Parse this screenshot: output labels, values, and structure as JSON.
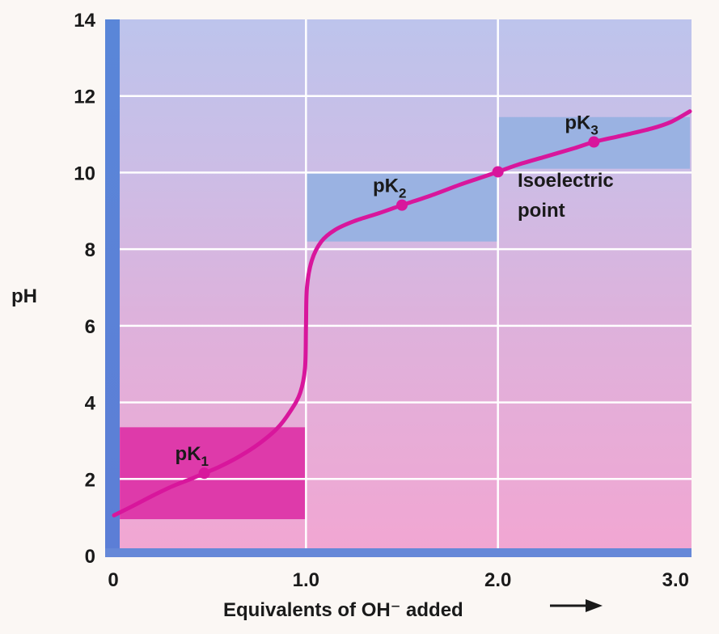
{
  "chart_data": {
    "type": "line",
    "title": "",
    "xlabel": "Equivalents of OH⁻ added",
    "ylabel": "pH",
    "xlim": [
      0,
      3.0
    ],
    "ylim": [
      0,
      14
    ],
    "x_ticks": [
      {
        "value": 0,
        "label": "0"
      },
      {
        "value": 1.0,
        "label": "1.0"
      },
      {
        "value": 2.0,
        "label": "2.0"
      },
      {
        "value": 3.0,
        "label": "3.0"
      }
    ],
    "y_ticks": [
      {
        "value": 0,
        "label": "0"
      },
      {
        "value": 2,
        "label": "2"
      },
      {
        "value": 4,
        "label": "4"
      },
      {
        "value": 6,
        "label": "6"
      },
      {
        "value": 8,
        "label": "8"
      },
      {
        "value": 10,
        "label": "10"
      },
      {
        "value": 12,
        "label": "12"
      },
      {
        "value": 14,
        "label": "14"
      }
    ],
    "grid": true,
    "series": [
      {
        "color": "#d8169c",
        "points": [
          [
            0,
            1.05
          ],
          [
            0.1,
            1.3
          ],
          [
            0.2,
            1.56
          ],
          [
            0.3,
            1.8
          ],
          [
            0.4,
            2.0
          ],
          [
            0.47,
            2.15
          ],
          [
            0.55,
            2.32
          ],
          [
            0.65,
            2.58
          ],
          [
            0.75,
            2.9
          ],
          [
            0.85,
            3.32
          ],
          [
            0.92,
            3.78
          ],
          [
            0.97,
            4.25
          ],
          [
            0.995,
            4.9
          ],
          [
            1.0,
            6.0
          ],
          [
            1.005,
            7.0
          ],
          [
            1.03,
            7.7
          ],
          [
            1.08,
            8.2
          ],
          [
            1.15,
            8.5
          ],
          [
            1.25,
            8.73
          ],
          [
            1.38,
            8.94
          ],
          [
            1.5,
            9.15
          ],
          [
            1.65,
            9.4
          ],
          [
            1.8,
            9.68
          ],
          [
            1.9,
            9.85
          ],
          [
            2.0,
            10.02
          ],
          [
            2.1,
            10.2
          ],
          [
            2.25,
            10.42
          ],
          [
            2.4,
            10.64
          ],
          [
            2.5,
            10.8
          ],
          [
            2.65,
            10.97
          ],
          [
            2.8,
            11.15
          ],
          [
            2.9,
            11.32
          ],
          [
            3.0,
            11.6
          ]
        ]
      }
    ],
    "highlight_regions": [
      {
        "x": [
          0.03,
          1.0
        ],
        "y": [
          0.95,
          3.35
        ],
        "color": "#de3aaa"
      },
      {
        "x": [
          1.0,
          2.0
        ],
        "y": [
          8.2,
          10.0
        ],
        "color": "#9ab2e2"
      },
      {
        "x": [
          2.0,
          3.0
        ],
        "y": [
          10.1,
          11.45
        ],
        "color": "#9ab2e2"
      }
    ],
    "marked_points": [
      {
        "x": 0.47,
        "y": 2.15,
        "label": "pK",
        "sub": "1"
      },
      {
        "x": 1.5,
        "y": 9.15,
        "label": "pK",
        "sub": "2"
      },
      {
        "x": 2.5,
        "y": 10.8,
        "label": "pK",
        "sub": "3"
      },
      {
        "x": 2.0,
        "y": 10.02
      }
    ],
    "annotation": {
      "line1": "Isoelectric",
      "line2": "point"
    }
  }
}
